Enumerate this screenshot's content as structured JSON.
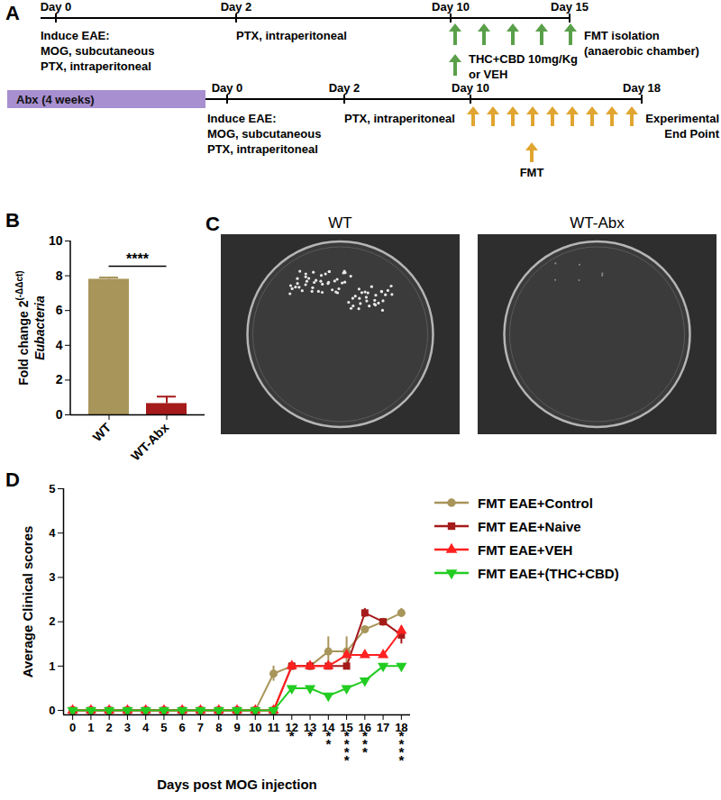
{
  "panel_labels": [
    "A",
    "B",
    "C",
    "D"
  ],
  "timelines": [
    {
      "color": "#5aa04a",
      "days": [
        {
          "label": "Day 0",
          "notes": [
            "Induce EAE:",
            "MOG, subcutaneous",
            "PTX, intraperitoneal"
          ]
        },
        {
          "label": "Day 2",
          "notes": [
            "PTX, intraperitoneal"
          ]
        },
        {
          "label": "Day 10",
          "notes": [
            "THC+CBD 10mg/Kg",
            "or VEH"
          ]
        },
        {
          "label": "Day 15",
          "notes": [
            "FMT isolation",
            "(anaerobic chamber)"
          ]
        }
      ]
    },
    {
      "color": "#e0a531",
      "bar": "Abx (4 weeks)",
      "days": [
        {
          "label": "Day 0",
          "notes": [
            "Induce EAE:",
            "MOG, subcutaneous",
            "PTX, intraperitoneal"
          ]
        },
        {
          "label": "Day 2",
          "notes": [
            "PTX, intraperitoneal"
          ]
        },
        {
          "label": "Day 10",
          "notes": [
            "FMT"
          ]
        },
        {
          "label": "Day 18",
          "notes": [
            "Experimental",
            "End Point"
          ]
        }
      ]
    }
  ],
  "chart_data": [
    {
      "type": "bar",
      "categories": [
        "WT",
        "WT-Abx"
      ],
      "values": [
        7.8,
        0.65
      ],
      "errors": [
        0.1,
        0.4
      ],
      "colors": [
        "#a8955a",
        "#a51a1a"
      ],
      "ylim": [
        0,
        10
      ],
      "yticks": [
        0,
        2,
        4,
        6,
        8,
        10
      ],
      "ylabel": {
        "text": "Fold change 2",
        "superscript": "(-ΔΔct)",
        "second_line": "Eubacteria"
      },
      "annotations": [
        {
          "text": "****",
          "between": [
            "WT",
            "WT-Abx"
          ]
        }
      ]
    },
    {
      "type": "line",
      "x": [
        0,
        1,
        2,
        3,
        4,
        5,
        6,
        7,
        8,
        9,
        10,
        11,
        12,
        13,
        14,
        15,
        16,
        17,
        18
      ],
      "series": [
        {
          "name": "FMT EAE+Control",
          "color": "#a8955a",
          "marker": "circle",
          "values": [
            0,
            0,
            0,
            0,
            0,
            0,
            0,
            0,
            0,
            0,
            0,
            0.83,
            1,
            1,
            1.33,
            1.33,
            1.83,
            2,
            2.2
          ],
          "errors": [
            null,
            null,
            null,
            null,
            null,
            null,
            null,
            null,
            null,
            null,
            null,
            0.17,
            null,
            null,
            0.33,
            0.33,
            null,
            null,
            0.1
          ]
        },
        {
          "name": "FMT EAE+Naive",
          "color": "#a51a1a",
          "marker": "square",
          "values": [
            0,
            0,
            0,
            0,
            0,
            0,
            0,
            0,
            0,
            0,
            0,
            0,
            1,
            1,
            1,
            1,
            2.2,
            2,
            1.7
          ],
          "errors": [
            null,
            null,
            null,
            null,
            null,
            null,
            null,
            null,
            null,
            null,
            null,
            null,
            null,
            null,
            null,
            null,
            0.1,
            null,
            0.2
          ]
        },
        {
          "name": "FMT EAE+VEH",
          "color": "#ff2020",
          "marker": "triangle-up",
          "values": [
            0,
            0,
            0,
            0,
            0,
            0,
            0,
            0,
            0,
            0,
            0,
            0,
            1,
            1,
            1,
            1.25,
            1.25,
            1.25,
            1.8
          ]
        },
        {
          "name": "FMT EAE+(THC+CBD)",
          "color": "#22cc22",
          "marker": "triangle-down",
          "values": [
            0,
            0,
            0,
            0,
            0,
            0,
            0,
            0,
            0,
            0,
            0,
            0,
            0.5,
            0.5,
            0.33,
            0.5,
            0.67,
            1,
            1
          ]
        }
      ],
      "xlim": [
        -0.5,
        18.5
      ],
      "xticks": [
        0,
        1,
        2,
        3,
        4,
        5,
        6,
        7,
        8,
        9,
        10,
        11,
        12,
        13,
        14,
        15,
        16,
        17,
        18
      ],
      "ylim": [
        -0.1,
        5
      ],
      "yticks": [
        0,
        1,
        2,
        3,
        4,
        5
      ],
      "xlabel": "Days post MOG injection",
      "ylabel": "Average Clinical scores",
      "legend": "right",
      "annotations": [
        {
          "x": 12,
          "text": "*"
        },
        {
          "x": 13,
          "text": "*"
        },
        {
          "x": 14,
          "text": "**"
        },
        {
          "x": 15,
          "text": "****"
        },
        {
          "x": 16,
          "text": "***"
        },
        {
          "x": 18,
          "text": "****"
        }
      ]
    }
  ],
  "plates": [
    {
      "title": "WT"
    },
    {
      "title": "WT-Abx"
    }
  ]
}
